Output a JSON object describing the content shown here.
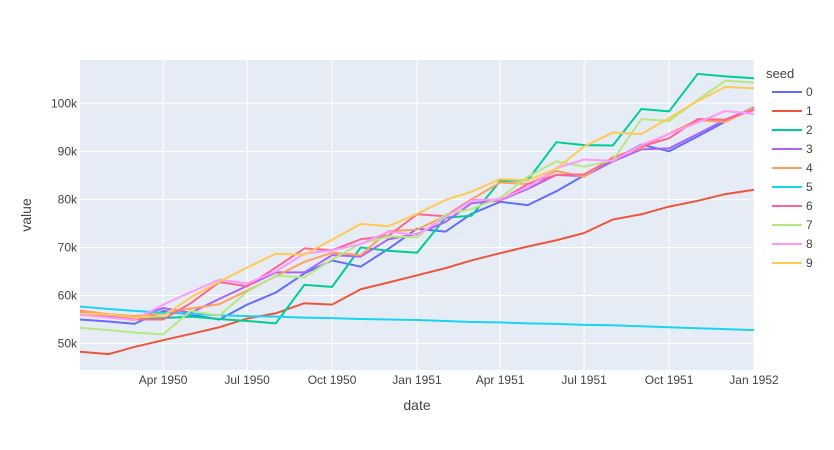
{
  "chart_data": {
    "type": "line",
    "xlabel": "date",
    "ylabel": "value",
    "legend_title": "seed",
    "legend_position": "right",
    "plot_background": "#E5ECF6",
    "grid": true,
    "xlim": [
      "1950-01-01",
      "1952-01-01"
    ],
    "ylim": [
      44500,
      109000
    ],
    "x_ticks": [
      {
        "date": "1950-04-01",
        "label": "Apr 1950"
      },
      {
        "date": "1950-07-01",
        "label": "Jul 1950"
      },
      {
        "date": "1950-10-01",
        "label": "Oct 1950"
      },
      {
        "date": "1951-01-01",
        "label": "Jan 1951"
      },
      {
        "date": "1951-04-01",
        "label": "Apr 1951"
      },
      {
        "date": "1951-07-01",
        "label": "Jul 1951"
      },
      {
        "date": "1951-10-01",
        "label": "Oct 1951"
      },
      {
        "date": "1952-01-01",
        "label": "Jan 1952"
      }
    ],
    "y_ticks": [
      {
        "value": 50000,
        "label": "50k"
      },
      {
        "value": 60000,
        "label": "60k"
      },
      {
        "value": 70000,
        "label": "70k"
      },
      {
        "value": 80000,
        "label": "80k"
      },
      {
        "value": 90000,
        "label": "90k"
      },
      {
        "value": 100000,
        "label": "100k"
      }
    ],
    "x": [
      "1950-01-01",
      "1950-02-01",
      "1950-03-01",
      "1950-04-01",
      "1950-05-01",
      "1950-06-01",
      "1950-07-01",
      "1950-08-01",
      "1950-09-01",
      "1950-10-01",
      "1950-11-01",
      "1950-12-01",
      "1951-01-01",
      "1951-02-01",
      "1951-03-01",
      "1951-04-01",
      "1951-05-01",
      "1951-06-01",
      "1951-07-01",
      "1951-08-01",
      "1951-09-01",
      "1951-10-01",
      "1951-11-01",
      "1951-12-01",
      "1952-01-01"
    ],
    "series": [
      {
        "name": "0",
        "color": "#636EFA",
        "values": [
          55000,
          54600,
          54100,
          56800,
          56000,
          55000,
          58100,
          60600,
          64600,
          67300,
          66000,
          69700,
          73900,
          73300,
          77000,
          79500,
          78800,
          81700,
          85000,
          88200,
          91400,
          90000,
          93100,
          96200,
          99200
        ]
      },
      {
        "name": "1",
        "color": "#EF553B",
        "values": [
          48300,
          47800,
          49300,
          50700,
          52000,
          53400,
          55200,
          56300,
          58400,
          58100,
          61300,
          62700,
          64200,
          65700,
          67300,
          68800,
          70200,
          71500,
          73000,
          75800,
          76900,
          78500,
          79700,
          81100,
          82000
        ]
      },
      {
        "name": "2",
        "color": "#00CC96",
        "values": [
          56000,
          55600,
          55200,
          55300,
          55600,
          55100,
          54700,
          54200,
          62200,
          61800,
          70000,
          69300,
          68900,
          76200,
          76600,
          83800,
          84000,
          91900,
          91300,
          91200,
          98800,
          98300,
          106100,
          105600,
          105200
        ]
      },
      {
        "name": "3",
        "color": "#AB63FA",
        "values": [
          56500,
          55700,
          55200,
          57400,
          56400,
          59300,
          62000,
          64800,
          64800,
          68400,
          68100,
          71700,
          72800,
          75300,
          79200,
          79800,
          82200,
          85100,
          84800,
          87900,
          90400,
          90600,
          93600,
          96600,
          99000
        ]
      },
      {
        "name": "4",
        "color": "#FFA15A",
        "values": [
          56900,
          56100,
          55700,
          56300,
          57300,
          58200,
          61000,
          64000,
          67000,
          68900,
          68400,
          73400,
          73700,
          76600,
          80000,
          83500,
          83200,
          85900,
          84700,
          88800,
          90700,
          93700,
          96500,
          96100,
          99100
        ]
      },
      {
        "name": "5",
        "color": "#19D3F3",
        "values": [
          57700,
          57200,
          56800,
          56400,
          56200,
          55900,
          55700,
          55600,
          55400,
          55300,
          55100,
          55000,
          54900,
          54700,
          54500,
          54400,
          54200,
          54100,
          53900,
          53800,
          53600,
          53400,
          53200,
          53000,
          52800
        ]
      },
      {
        "name": "6",
        "color": "#FF6692",
        "values": [
          56000,
          55500,
          55000,
          55000,
          58400,
          62800,
          61900,
          65800,
          69800,
          69400,
          71700,
          72400,
          76900,
          76500,
          79900,
          79800,
          83200,
          85100,
          85200,
          88500,
          91000,
          92700,
          96700,
          96600,
          98600
        ]
      },
      {
        "name": "7",
        "color": "#B6E880",
        "values": [
          53300,
          52800,
          52300,
          51900,
          56800,
          55800,
          60800,
          64100,
          63800,
          67500,
          70800,
          72300,
          72100,
          76900,
          78000,
          80300,
          84700,
          87900,
          86800,
          88100,
          96700,
          96300,
          100700,
          104700,
          104300
        ]
      },
      {
        "name": "8",
        "color": "#FF97FF",
        "values": [
          56000,
          55400,
          54900,
          58100,
          60700,
          63300,
          62500,
          65000,
          68700,
          69400,
          70700,
          73300,
          72600,
          76300,
          79800,
          80000,
          82500,
          86500,
          88300,
          88000,
          91300,
          93600,
          96000,
          98400,
          97800
        ]
      },
      {
        "name": "9",
        "color": "#FECB52",
        "values": [
          56300,
          56000,
          55400,
          55700,
          59600,
          62900,
          65800,
          68700,
          68500,
          71600,
          74900,
          74400,
          77000,
          79900,
          81600,
          84200,
          84000,
          86400,
          91000,
          93900,
          93600,
          96900,
          100500,
          103400,
          103100
        ]
      }
    ]
  }
}
